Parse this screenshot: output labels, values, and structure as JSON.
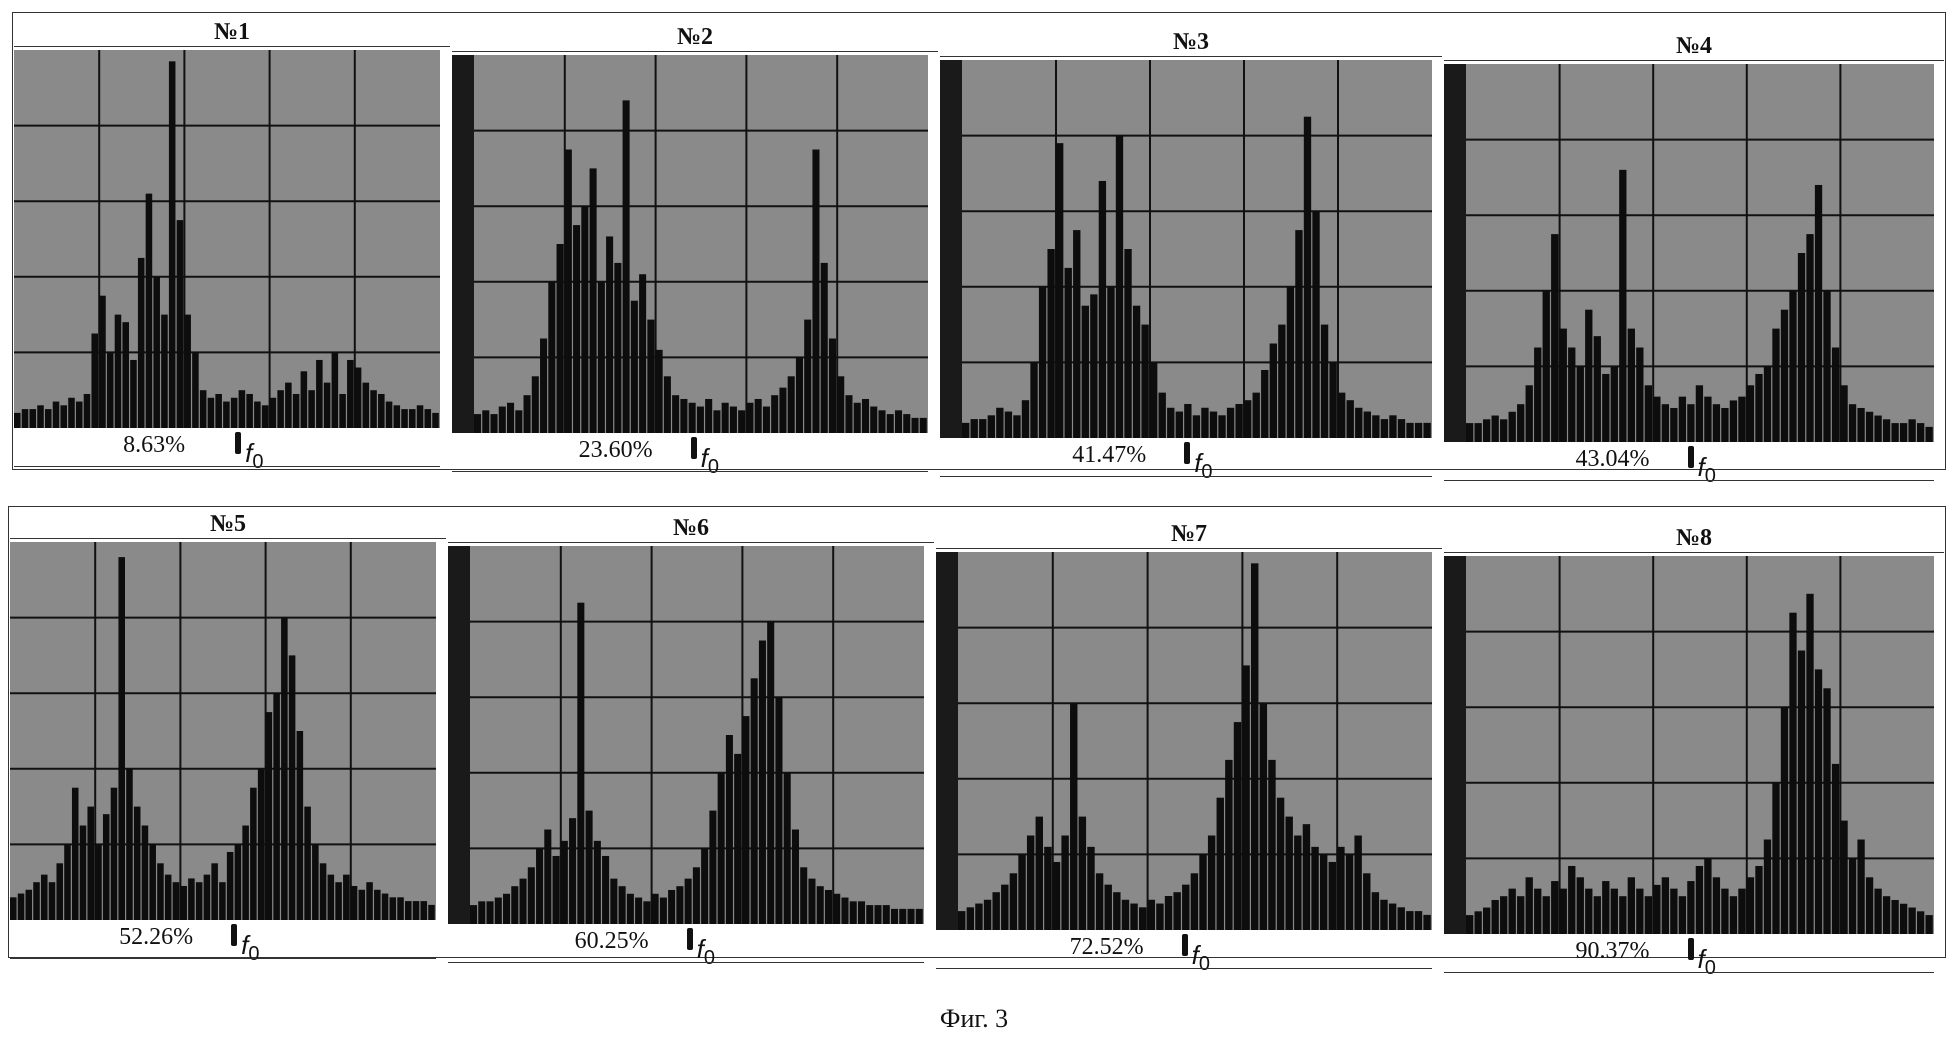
{
  "figure": {
    "caption": "Фиг. 3",
    "marker_label": "f",
    "marker_sub": "0"
  },
  "chart_data": [
    {
      "type": "bar",
      "title": "№1",
      "percent": "8.63%",
      "values": [
        0.04,
        0.05,
        0.05,
        0.06,
        0.05,
        0.07,
        0.06,
        0.08,
        0.07,
        0.09,
        0.25,
        0.35,
        0.2,
        0.3,
        0.28,
        0.18,
        0.45,
        0.62,
        0.4,
        0.3,
        0.97,
        0.55,
        0.3,
        0.2,
        0.1,
        0.08,
        0.09,
        0.07,
        0.08,
        0.1,
        0.09,
        0.07,
        0.06,
        0.08,
        0.1,
        0.12,
        0.09,
        0.15,
        0.1,
        0.18,
        0.12,
        0.2,
        0.09,
        0.18,
        0.16,
        0.12,
        0.1,
        0.09,
        0.07,
        0.06,
        0.05,
        0.05,
        0.06,
        0.05,
        0.04
      ]
    },
    {
      "type": "bar",
      "title": "№2",
      "percent": "23.60%",
      "values": [
        0.05,
        0.06,
        0.05,
        0.07,
        0.08,
        0.06,
        0.1,
        0.15,
        0.25,
        0.4,
        0.5,
        0.75,
        0.55,
        0.6,
        0.7,
        0.4,
        0.52,
        0.45,
        0.88,
        0.35,
        0.42,
        0.3,
        0.22,
        0.15,
        0.1,
        0.09,
        0.08,
        0.07,
        0.09,
        0.06,
        0.08,
        0.07,
        0.06,
        0.08,
        0.09,
        0.07,
        0.1,
        0.12,
        0.15,
        0.2,
        0.3,
        0.75,
        0.45,
        0.25,
        0.15,
        0.1,
        0.08,
        0.09,
        0.07,
        0.06,
        0.05,
        0.06,
        0.05,
        0.04,
        0.04
      ]
    },
    {
      "type": "bar",
      "title": "№3",
      "percent": "41.47%",
      "values": [
        0.04,
        0.05,
        0.05,
        0.06,
        0.08,
        0.07,
        0.06,
        0.1,
        0.2,
        0.4,
        0.5,
        0.78,
        0.45,
        0.55,
        0.35,
        0.38,
        0.68,
        0.4,
        0.8,
        0.5,
        0.35,
        0.3,
        0.2,
        0.12,
        0.08,
        0.07,
        0.09,
        0.06,
        0.08,
        0.07,
        0.06,
        0.08,
        0.09,
        0.1,
        0.12,
        0.18,
        0.25,
        0.3,
        0.4,
        0.55,
        0.85,
        0.6,
        0.3,
        0.2,
        0.12,
        0.1,
        0.08,
        0.07,
        0.06,
        0.05,
        0.06,
        0.05,
        0.04,
        0.04,
        0.04
      ]
    },
    {
      "type": "bar",
      "title": "№4",
      "percent": "43.04%",
      "values": [
        0.05,
        0.05,
        0.06,
        0.07,
        0.06,
        0.08,
        0.1,
        0.15,
        0.25,
        0.4,
        0.55,
        0.3,
        0.25,
        0.2,
        0.35,
        0.28,
        0.18,
        0.2,
        0.72,
        0.3,
        0.25,
        0.15,
        0.12,
        0.1,
        0.09,
        0.12,
        0.1,
        0.15,
        0.12,
        0.1,
        0.09,
        0.11,
        0.12,
        0.15,
        0.18,
        0.2,
        0.3,
        0.35,
        0.4,
        0.5,
        0.55,
        0.68,
        0.4,
        0.25,
        0.15,
        0.1,
        0.09,
        0.08,
        0.07,
        0.06,
        0.05,
        0.05,
        0.06,
        0.05,
        0.04
      ]
    },
    {
      "type": "bar",
      "title": "№5",
      "percent": "52.26%",
      "values": [
        0.06,
        0.07,
        0.08,
        0.1,
        0.12,
        0.1,
        0.15,
        0.2,
        0.35,
        0.25,
        0.3,
        0.2,
        0.28,
        0.35,
        0.96,
        0.4,
        0.3,
        0.25,
        0.2,
        0.15,
        0.12,
        0.1,
        0.09,
        0.11,
        0.1,
        0.12,
        0.15,
        0.1,
        0.18,
        0.2,
        0.25,
        0.35,
        0.4,
        0.55,
        0.6,
        0.8,
        0.7,
        0.5,
        0.3,
        0.2,
        0.15,
        0.12,
        0.1,
        0.12,
        0.09,
        0.08,
        0.1,
        0.08,
        0.07,
        0.06,
        0.06,
        0.05,
        0.05,
        0.05,
        0.04
      ]
    },
    {
      "type": "bar",
      "title": "№6",
      "percent": "60.25%",
      "values": [
        0.05,
        0.06,
        0.06,
        0.07,
        0.08,
        0.1,
        0.12,
        0.15,
        0.2,
        0.25,
        0.18,
        0.22,
        0.28,
        0.85,
        0.3,
        0.22,
        0.18,
        0.12,
        0.1,
        0.08,
        0.07,
        0.06,
        0.08,
        0.07,
        0.09,
        0.1,
        0.12,
        0.15,
        0.2,
        0.3,
        0.4,
        0.5,
        0.45,
        0.55,
        0.65,
        0.75,
        0.8,
        0.6,
        0.4,
        0.25,
        0.15,
        0.12,
        0.1,
        0.09,
        0.08,
        0.07,
        0.06,
        0.06,
        0.05,
        0.05,
        0.05,
        0.04,
        0.04,
        0.04,
        0.04
      ]
    },
    {
      "type": "bar",
      "title": "№7",
      "percent": "72.52%",
      "values": [
        0.05,
        0.06,
        0.07,
        0.08,
        0.1,
        0.12,
        0.15,
        0.2,
        0.25,
        0.3,
        0.22,
        0.18,
        0.25,
        0.6,
        0.3,
        0.22,
        0.15,
        0.12,
        0.1,
        0.08,
        0.07,
        0.06,
        0.08,
        0.07,
        0.09,
        0.1,
        0.12,
        0.15,
        0.2,
        0.25,
        0.35,
        0.45,
        0.55,
        0.7,
        0.97,
        0.6,
        0.45,
        0.35,
        0.3,
        0.25,
        0.28,
        0.22,
        0.2,
        0.18,
        0.22,
        0.2,
        0.25,
        0.15,
        0.1,
        0.08,
        0.07,
        0.06,
        0.05,
        0.05,
        0.04
      ]
    },
    {
      "type": "bar",
      "title": "№8",
      "percent": "90.37%",
      "values": [
        0.05,
        0.06,
        0.07,
        0.09,
        0.1,
        0.12,
        0.1,
        0.15,
        0.12,
        0.1,
        0.14,
        0.12,
        0.18,
        0.15,
        0.12,
        0.1,
        0.14,
        0.12,
        0.1,
        0.15,
        0.12,
        0.1,
        0.13,
        0.15,
        0.12,
        0.1,
        0.14,
        0.18,
        0.2,
        0.15,
        0.12,
        0.1,
        0.12,
        0.15,
        0.18,
        0.25,
        0.4,
        0.6,
        0.85,
        0.75,
        0.9,
        0.7,
        0.65,
        0.45,
        0.3,
        0.2,
        0.25,
        0.15,
        0.12,
        0.1,
        0.09,
        0.08,
        0.07,
        0.06,
        0.05
      ]
    }
  ]
}
